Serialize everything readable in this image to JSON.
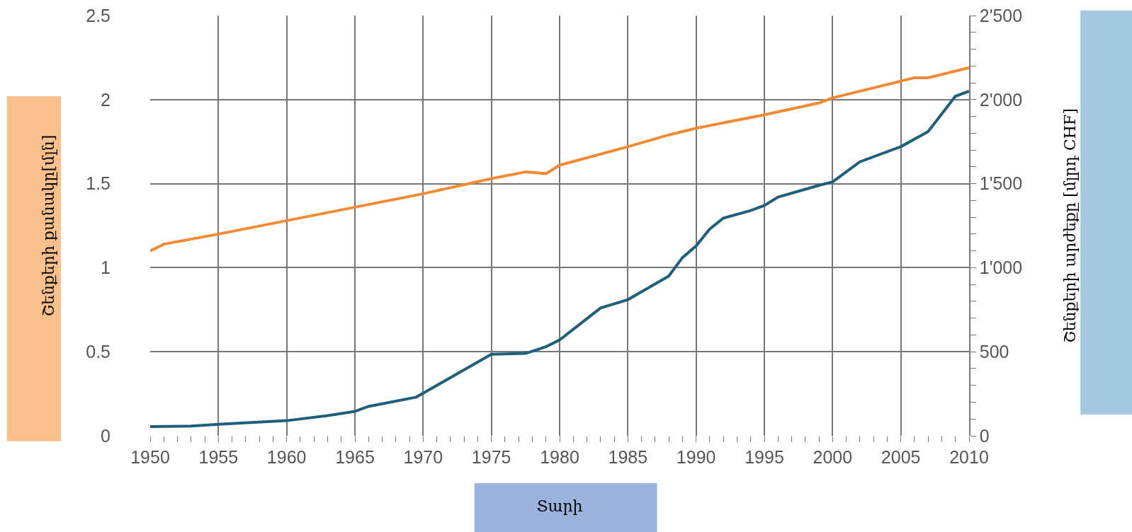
{
  "chart_data": {
    "type": "line",
    "xlabel": "Տարի",
    "ylabel": "Շենքերի քանակը[մլն]",
    "y2label": "Շենքերի արժեքը [մլրդ CHF]",
    "series": [
      {
        "color": "#f08a34",
        "x": [
          1950,
          1951,
          1955,
          1960,
          1965,
          1970,
          1975,
          1977.5,
          1979,
          1980,
          1985,
          1988,
          1990,
          1995,
          1999,
          2000,
          2005,
          2006,
          2007,
          2010
        ],
        "values": [
          1.1,
          1.14,
          1.2,
          1.28,
          1.36,
          1.44,
          1.53,
          1.57,
          1.56,
          1.61,
          1.72,
          1.79,
          1.83,
          1.91,
          1.98,
          2.01,
          2.11,
          2.13,
          2.13,
          2.19
        ]
      },
      {
        "color": "#1f5f7a",
        "axis": "y2",
        "x": [
          1950,
          1953,
          1955,
          1960,
          1963,
          1965,
          1966,
          1969.5,
          1975,
          1977.5,
          1979,
          1980,
          1983,
          1985,
          1988,
          1989,
          1990,
          1991,
          1992,
          1994,
          1995,
          1996,
          1999,
          2000,
          2002,
          2005,
          2007,
          2009,
          2010
        ],
        "values": [
          55,
          58,
          68,
          90,
          120,
          145,
          175,
          230,
          485,
          490,
          530,
          570,
          760,
          810,
          950,
          1060,
          1130,
          1230,
          1295,
          1340,
          1370,
          1420,
          1490,
          1510,
          1630,
          1720,
          1810,
          2020,
          2050
        ]
      }
    ],
    "xlim": [
      1950,
      2010
    ],
    "xticks": [
      1950,
      {
        "value": 1951,
        "label": null
      },
      {
        "value": 1952,
        "label": null
      },
      {
        "value": 1953,
        "label": null
      },
      {
        "value": 1954,
        "label": null
      },
      1955,
      {
        "value": 1956,
        "label": null
      },
      {
        "value": 1957,
        "label": null
      },
      {
        "value": 1958,
        "label": null
      },
      {
        "value": 1959,
        "label": null
      },
      1960,
      {
        "value": 1961,
        "label": null
      },
      {
        "value": 1962,
        "label": null
      },
      {
        "value": 1963,
        "label": null
      },
      {
        "value": 1964,
        "label": null
      },
      1965,
      {
        "value": 1966,
        "label": null
      },
      {
        "value": 1967,
        "label": null
      },
      {
        "value": 1968,
        "label": null
      },
      {
        "value": 1969,
        "label": null
      },
      1970,
      {
        "value": 1971,
        "label": null
      },
      {
        "value": 1972,
        "label": null
      },
      {
        "value": 1973,
        "label": null
      },
      {
        "value": 1974,
        "label": null
      },
      1975,
      {
        "value": 1976,
        "label": null
      },
      {
        "value": 1977,
        "label": null
      },
      {
        "value": 1978,
        "label": null
      },
      {
        "value": 1979,
        "label": null
      },
      1980,
      {
        "value": 1981,
        "label": null
      },
      {
        "value": 1982,
        "label": null
      },
      {
        "value": 1983,
        "label": null
      },
      {
        "value": 1984,
        "label": null
      },
      1985,
      {
        "value": 1986,
        "label": null
      },
      {
        "value": 1987,
        "label": null
      },
      {
        "value": 1988,
        "label": null
      },
      {
        "value": 1989,
        "label": null
      },
      1990,
      {
        "value": 1991,
        "label": null
      },
      {
        "value": 1992,
        "label": null
      },
      {
        "value": 1993,
        "label": null
      },
      {
        "value": 1994,
        "label": null
      },
      1995,
      {
        "value": 1996,
        "label": null
      },
      {
        "value": 1997,
        "label": null
      },
      {
        "value": 1998,
        "label": null
      },
      {
        "value": 1999,
        "label": null
      },
      2000,
      {
        "value": 2001,
        "label": null
      },
      {
        "value": 2002,
        "label": null
      },
      {
        "value": 2003,
        "label": null
      },
      {
        "value": 2004,
        "label": null
      },
      2005,
      {
        "value": 2006,
        "label": null
      },
      {
        "value": 2007,
        "label": null
      },
      {
        "value": 2008,
        "label": null
      },
      {
        "value": 2009,
        "label": null
      },
      2010
    ],
    "ylim": [
      0,
      2.5
    ],
    "yticks": [
      0,
      0.5,
      1,
      1.5,
      2,
      2.5
    ],
    "y2lim": [
      0,
      2500
    ],
    "y2ticks": [
      0,
      {
        "value": 100,
        "label": null
      },
      {
        "value": 200,
        "label": null
      },
      {
        "value": 300,
        "label": null
      },
      {
        "value": 400,
        "label": null
      },
      500,
      {
        "value": 600,
        "label": null
      },
      {
        "value": 700,
        "label": null
      },
      {
        "value": 800,
        "label": null
      },
      {
        "value": 900,
        "label": null
      },
      {
        "value": 1000,
        "label": "1'000"
      },
      {
        "value": 1100,
        "label": null
      },
      {
        "value": 1200,
        "label": null
      },
      {
        "value": 1300,
        "label": null
      },
      {
        "value": 1400,
        "label": null
      },
      {
        "value": 1500,
        "label": "1'500"
      },
      {
        "value": 1600,
        "label": null
      },
      {
        "value": 1700,
        "label": null
      },
      {
        "value": 1800,
        "label": null
      },
      {
        "value": 1900,
        "label": null
      },
      {
        "value": 2000,
        "label": "2'000"
      },
      {
        "value": 2100,
        "label": null
      },
      {
        "value": 2200,
        "label": null
      },
      {
        "value": 2300,
        "label": null
      },
      {
        "value": 2400,
        "label": null
      },
      {
        "value": 2500,
        "label": "2'500"
      }
    ],
    "grid": true,
    "marker": "none",
    "line_style": "solid"
  }
}
